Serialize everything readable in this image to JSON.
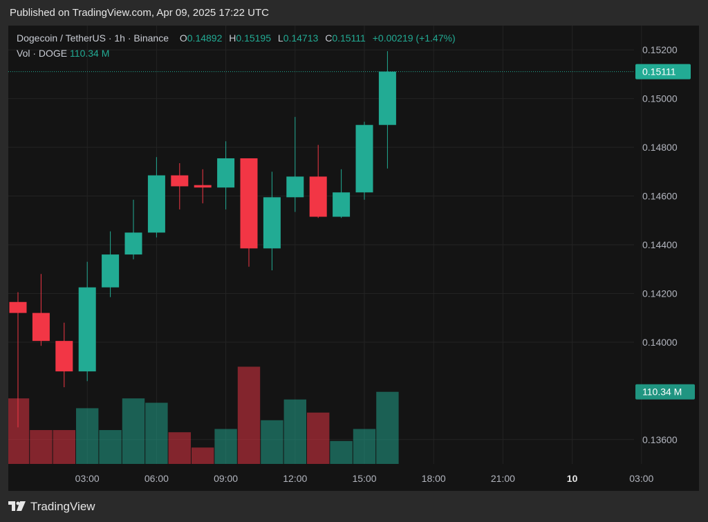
{
  "header": {
    "published": "Published on TradingView.com, Apr 09, 2025 17:22 UTC"
  },
  "legend": {
    "symbol": "Dogecoin / TetherUS · 1h · Binance",
    "open_label": "O",
    "open": "0.14892",
    "high_label": "H",
    "high": "0.15195",
    "low_label": "L",
    "low": "0.14713",
    "close_label": "C",
    "close": "0.15111",
    "change": "+0.00219 (+1.47%)"
  },
  "volume_legend": {
    "label": "Vol · DOGE",
    "value": "110.34 M"
  },
  "price_tag": "0.15111",
  "volume_tag": "110.34 M",
  "footer": {
    "brand": "TradingView"
  },
  "colors": {
    "up": "#22ab94",
    "down": "#f23645",
    "background": "#141414",
    "grid": "#232323",
    "axis_text": "#b2b5be"
  },
  "chart_data": {
    "type": "candlestick",
    "title": "Dogecoin / TetherUS · 1h · Binance",
    "y_axis_ticks": [
      "0.15200",
      "0.15000",
      "0.14800",
      "0.14600",
      "0.14400",
      "0.14200",
      "0.14000",
      "0.13600"
    ],
    "y_tick_values": [
      0.152,
      0.15,
      0.148,
      0.146,
      0.144,
      0.142,
      0.14,
      0.136
    ],
    "ylim": [
      0.135,
      0.153
    ],
    "x_axis_ticks": [
      "03:00",
      "06:00",
      "09:00",
      "12:00",
      "15:00",
      "18:00",
      "21:00",
      "10",
      "03:00"
    ],
    "x_tick_hours": [
      3,
      6,
      9,
      12,
      15,
      18,
      21,
      24,
      27
    ],
    "x_tick_bold": [
      false,
      false,
      false,
      false,
      false,
      false,
      false,
      true,
      false
    ],
    "candles": [
      {
        "hour": 0,
        "open": 0.14165,
        "high": 0.14205,
        "low": 0.1365,
        "close": 0.1412
      },
      {
        "hour": 1,
        "open": 0.1412,
        "high": 0.1428,
        "low": 0.13985,
        "close": 0.14005
      },
      {
        "hour": 2,
        "open": 0.14005,
        "high": 0.1408,
        "low": 0.13815,
        "close": 0.1388
      },
      {
        "hour": 3,
        "open": 0.1388,
        "high": 0.1433,
        "low": 0.1384,
        "close": 0.14225
      },
      {
        "hour": 4,
        "open": 0.14225,
        "high": 0.14455,
        "low": 0.14185,
        "close": 0.1436
      },
      {
        "hour": 5,
        "open": 0.1436,
        "high": 0.14585,
        "low": 0.1434,
        "close": 0.1445
      },
      {
        "hour": 6,
        "open": 0.1445,
        "high": 0.1476,
        "low": 0.1443,
        "close": 0.14685
      },
      {
        "hour": 7,
        "open": 0.14685,
        "high": 0.14735,
        "low": 0.14545,
        "close": 0.1464
      },
      {
        "hour": 8,
        "open": 0.14645,
        "high": 0.1471,
        "low": 0.1457,
        "close": 0.14635
      },
      {
        "hour": 9,
        "open": 0.14635,
        "high": 0.14825,
        "low": 0.14545,
        "close": 0.14755
      },
      {
        "hour": 10,
        "open": 0.14755,
        "high": 0.14755,
        "low": 0.1431,
        "close": 0.14385
      },
      {
        "hour": 11,
        "open": 0.14385,
        "high": 0.147,
        "low": 0.14295,
        "close": 0.14595
      },
      {
        "hour": 12,
        "open": 0.14595,
        "high": 0.14925,
        "low": 0.14535,
        "close": 0.1468
      },
      {
        "hour": 13,
        "open": 0.1468,
        "high": 0.1481,
        "low": 0.1451,
        "close": 0.14515
      },
      {
        "hour": 14,
        "open": 0.14515,
        "high": 0.1471,
        "low": 0.1451,
        "close": 0.14615
      },
      {
        "hour": 15,
        "open": 0.14615,
        "high": 0.14905,
        "low": 0.14585,
        "close": 0.14892
      },
      {
        "hour": 16,
        "open": 0.14892,
        "high": 0.15195,
        "low": 0.14713,
        "close": 0.15111
      }
    ],
    "volume_relative": [
      0.6,
      0.31,
      0.31,
      0.51,
      0.31,
      0.6,
      0.56,
      0.29,
      0.15,
      0.32,
      0.89,
      0.4,
      0.59,
      0.47,
      0.21,
      0.32,
      0.66
    ],
    "grid": true
  }
}
